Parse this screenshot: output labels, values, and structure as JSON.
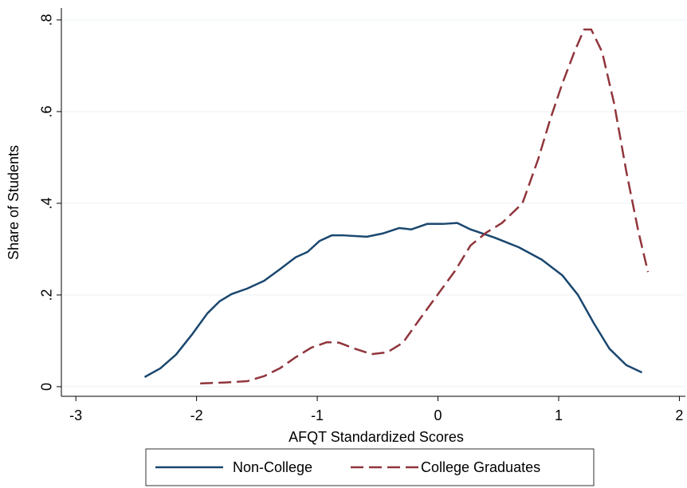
{
  "chart_data": {
    "type": "line",
    "x_label": "AFQT Standardized Scores",
    "y_label": "Share of Students",
    "xlim": [
      -3.12,
      2.05
    ],
    "ylim": [
      -0.021,
      0.826
    ],
    "xticks": [
      -3,
      -2,
      -1,
      0,
      1,
      2
    ],
    "yticks": [
      0,
      {
        "value": 0.2,
        "label": ".2"
      },
      {
        "value": 0.4,
        "label": ".4"
      },
      {
        "value": 0.6,
        "label": ".6"
      },
      {
        "value": 0.8,
        "label": ".8"
      }
    ],
    "grid": true,
    "legend": "bottom",
    "series": [
      {
        "name": "Non-College",
        "color": "#1a476f",
        "dash": "solid",
        "x": [
          -2.43,
          -2.3,
          -2.17,
          -2.04,
          -1.91,
          -1.81,
          -1.71,
          -1.58,
          -1.44,
          -1.31,
          -1.18,
          -1.08,
          -0.98,
          -0.88,
          -0.78,
          -0.59,
          -0.46,
          -0.32,
          -0.22,
          -0.09,
          0.04,
          0.16,
          0.27,
          0.47,
          0.67,
          0.86,
          1.03,
          1.16,
          1.29,
          1.42,
          1.56,
          1.69
        ],
        "values": [
          0.021,
          0.04,
          0.07,
          0.113,
          0.16,
          0.186,
          0.202,
          0.214,
          0.231,
          0.256,
          0.282,
          0.294,
          0.318,
          0.33,
          0.33,
          0.327,
          0.334,
          0.346,
          0.343,
          0.355,
          0.355,
          0.357,
          0.343,
          0.325,
          0.304,
          0.277,
          0.243,
          0.2,
          0.139,
          0.083,
          0.047,
          0.031
        ]
      },
      {
        "name": "College Graduates",
        "color": "#90353b",
        "dash": "dashed",
        "x": [
          -1.97,
          -1.77,
          -1.58,
          -1.44,
          -1.31,
          -1.18,
          -1.05,
          -0.92,
          -0.82,
          -0.69,
          -0.55,
          -0.42,
          -0.29,
          -0.16,
          -0.03,
          0.14,
          0.27,
          0.4,
          0.53,
          0.7,
          0.83,
          0.93,
          1.03,
          1.13,
          1.21,
          1.27,
          1.36,
          1.46,
          1.56,
          1.66,
          1.74
        ],
        "values": [
          0.007,
          0.009,
          0.012,
          0.023,
          0.04,
          0.064,
          0.085,
          0.097,
          0.096,
          0.083,
          0.071,
          0.075,
          0.096,
          0.144,
          0.191,
          0.252,
          0.308,
          0.336,
          0.357,
          0.4,
          0.496,
          0.583,
          0.661,
          0.73,
          0.779,
          0.779,
          0.73,
          0.617,
          0.47,
          0.339,
          0.25
        ]
      }
    ]
  }
}
